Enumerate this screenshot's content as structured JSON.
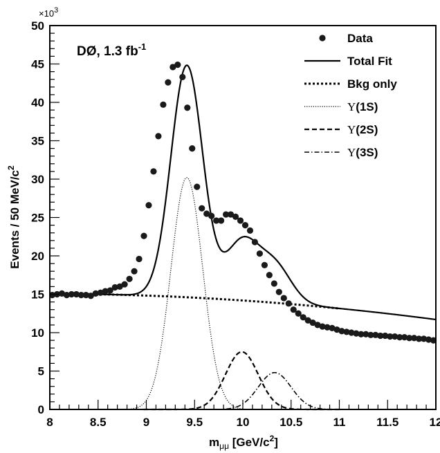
{
  "chart_data": {
    "type": "scatter",
    "title": "",
    "annotation": {
      "text": "DØ, 1.3 fb",
      "superscript": "-1"
    },
    "xlabel": {
      "main": "m",
      "subscript": "μμ",
      "after": " [GeV/c",
      "sup": "2",
      "close": "]"
    },
    "ylabel": {
      "main": "Events / 50 MeV/c",
      "sup": "2"
    },
    "y_multiplier": {
      "base": "×10",
      "exp": "3"
    },
    "xlim": [
      8,
      12
    ],
    "ylim": [
      0,
      50
    ],
    "x_ticks": [
      "8",
      "8.5",
      "9",
      "9.5",
      "10",
      "10.5",
      "11",
      "11.5",
      "12"
    ],
    "y_ticks": [
      "0",
      "5",
      "10",
      "15",
      "20",
      "25",
      "30",
      "35",
      "40",
      "45",
      "50"
    ],
    "legend": {
      "placement": "top-right",
      "entries": [
        {
          "label": "Data",
          "style": "marker"
        },
        {
          "label": "Total Fit",
          "style": "solid"
        },
        {
          "label": "Bkg only",
          "style": "dotted-thick"
        },
        {
          "label": "(1S)",
          "prefix": "Υ",
          "style": "dotted-thin"
        },
        {
          "label": "(2S)",
          "prefix": "Υ",
          "style": "dashed"
        },
        {
          "label": "(3S)",
          "prefix": "Υ",
          "style": "dashdot"
        }
      ]
    },
    "model": {
      "background": {
        "a": 15.0,
        "b": -0.24,
        "c": -0.2,
        "x0": 8.5
      },
      "peaks": [
        {
          "name": "(1S)",
          "mean": 9.42,
          "sigma": 0.165,
          "amp": 30.2
        },
        {
          "name": "(2S)",
          "mean": 9.99,
          "sigma": 0.17,
          "amp": 7.5
        },
        {
          "name": "(3S)",
          "mean": 10.33,
          "sigma": 0.17,
          "amp": 4.8
        }
      ]
    },
    "series": [
      {
        "name": "Data",
        "x": [
          8.025,
          8.075,
          8.125,
          8.175,
          8.225,
          8.275,
          8.325,
          8.375,
          8.425,
          8.475,
          8.525,
          8.575,
          8.625,
          8.675,
          8.725,
          8.775,
          8.825,
          8.875,
          8.925,
          8.975,
          9.025,
          9.075,
          9.125,
          9.175,
          9.225,
          9.275,
          9.325,
          9.375,
          9.425,
          9.475,
          9.525,
          9.575,
          9.625,
          9.675,
          9.725,
          9.775,
          9.825,
          9.875,
          9.925,
          9.975,
          10.025,
          10.075,
          10.125,
          10.175,
          10.225,
          10.275,
          10.325,
          10.375,
          10.425,
          10.475,
          10.525,
          10.575,
          10.625,
          10.675,
          10.725,
          10.775,
          10.825,
          10.875,
          10.925,
          10.975,
          11.025,
          11.075,
          11.125,
          11.175,
          11.225,
          11.275,
          11.325,
          11.375,
          11.425,
          11.475,
          11.525,
          11.575,
          11.625,
          11.675,
          11.725,
          11.775,
          11.825,
          11.875,
          11.925,
          11.975
        ],
        "y": [
          14.9,
          15.0,
          15.1,
          14.9,
          15.0,
          15.0,
          14.9,
          14.9,
          14.8,
          15.1,
          15.2,
          15.4,
          15.5,
          15.9,
          16.0,
          16.3,
          17.0,
          18.0,
          19.6,
          22.6,
          26.6,
          31.0,
          35.6,
          39.7,
          42.6,
          44.6,
          44.9,
          43.3,
          39.3,
          34.0,
          29.0,
          26.2,
          25.5,
          25.2,
          24.6,
          24.6,
          25.4,
          25.4,
          25.1,
          24.6,
          24.0,
          23.3,
          21.8,
          20.3,
          18.8,
          17.5,
          16.4,
          15.3,
          14.5,
          13.8,
          13.0,
          12.5,
          12.0,
          11.6,
          11.3,
          11.0,
          10.8,
          10.7,
          10.6,
          10.4,
          10.2,
          10.1,
          10.0,
          9.9,
          9.8,
          9.8,
          9.7,
          9.7,
          9.6,
          9.6,
          9.5,
          9.5,
          9.4,
          9.4,
          9.3,
          9.3,
          9.2,
          9.2,
          9.1,
          9.0
        ]
      }
    ]
  }
}
